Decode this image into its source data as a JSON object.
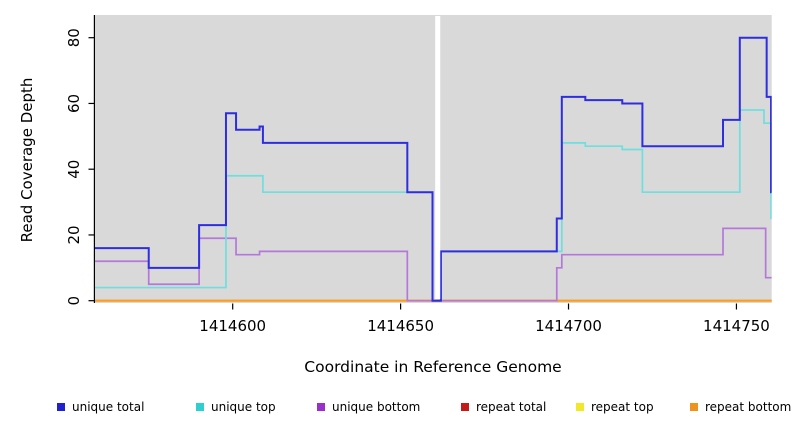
{
  "chart_data": {
    "type": "line",
    "subtype": "step-coverage-plot",
    "title": "",
    "xlabel": "Coordinate in Reference Genome",
    "ylabel": "Read Coverage Depth",
    "xlim": [
      1414559,
      1414760.5
    ],
    "ylim": [
      0,
      80
    ],
    "xticks": [
      1414600,
      1414650,
      1414700,
      1414750
    ],
    "xtick_labels": [
      "1414600",
      "1414650",
      "1414700",
      "1414750"
    ],
    "yticks": [
      0,
      20,
      40,
      60,
      80
    ],
    "ytick_labels": [
      "0",
      "20",
      "40",
      "60",
      "80"
    ],
    "plot_bg": "#d9d9d9",
    "axis_color": "#000000",
    "grid": "off",
    "legend_position": "bottom",
    "gap_stripe": {
      "x_start": 1414660.3,
      "x_end": 1414661.8,
      "color": "#ffffff"
    },
    "series": [
      {
        "name": "repeat total",
        "color": "#c41a1a",
        "width": 1.6,
        "points": [
          [
            1414559,
            0
          ],
          [
            1414760.5,
            0
          ]
        ]
      },
      {
        "name": "repeat top",
        "color": "#f0e829",
        "width": 1.6,
        "points": [
          [
            1414559,
            0
          ],
          [
            1414760.5,
            0
          ]
        ]
      },
      {
        "name": "repeat bottom",
        "color": "#ff9d1a",
        "width": 2,
        "points": [
          [
            1414559,
            0
          ],
          [
            1414760.5,
            0
          ]
        ]
      },
      {
        "name": "unique bottom",
        "color": "#b478da",
        "width": 1.7,
        "points": [
          [
            1414559,
            12
          ],
          [
            1414575,
            5
          ],
          [
            1414590,
            19
          ],
          [
            1414601,
            14
          ],
          [
            1414608,
            15
          ],
          [
            1414652,
            0
          ],
          [
            1414696.5,
            10
          ],
          [
            1414698,
            14
          ],
          [
            1414746,
            22
          ],
          [
            1414758.7,
            7
          ],
          [
            1414760.5,
            7
          ]
        ]
      },
      {
        "name": "unique top",
        "color": "#6fdede",
        "width": 1.7,
        "points": [
          [
            1414559,
            4
          ],
          [
            1414598,
            38
          ],
          [
            1414609,
            33
          ],
          [
            1414659.5,
            0
          ],
          [
            1414662,
            15
          ],
          [
            1414698,
            48
          ],
          [
            1414705,
            47
          ],
          [
            1414716,
            46
          ],
          [
            1414722,
            33
          ],
          [
            1414751,
            58
          ],
          [
            1414758.2,
            54
          ],
          [
            1414760.3,
            25
          ],
          [
            1414760.5,
            25
          ]
        ]
      },
      {
        "name": "unique total",
        "color": "#2e2ee0",
        "width": 2,
        "points": [
          [
            1414559,
            16
          ],
          [
            1414575,
            10
          ],
          [
            1414590,
            23
          ],
          [
            1414598,
            57
          ],
          [
            1414601,
            52
          ],
          [
            1414608,
            53
          ],
          [
            1414609,
            48
          ],
          [
            1414652,
            33
          ],
          [
            1414659.5,
            0
          ],
          [
            1414662,
            15
          ],
          [
            1414696.5,
            25
          ],
          [
            1414698,
            62
          ],
          [
            1414705,
            61
          ],
          [
            1414716,
            60
          ],
          [
            1414722,
            47
          ],
          [
            1414746,
            55
          ],
          [
            1414751,
            80
          ],
          [
            1414759,
            62
          ],
          [
            1414760.3,
            33
          ],
          [
            1414760.5,
            33
          ]
        ]
      }
    ]
  },
  "legend": {
    "items": [
      {
        "label": "unique total",
        "color": "#2121cd"
      },
      {
        "label": "unique top",
        "color": "#2ecfcf"
      },
      {
        "label": "unique bottom",
        "color": "#9a30cc"
      },
      {
        "label": "repeat total",
        "color": "#c41a1a"
      },
      {
        "label": "repeat top",
        "color": "#f0e829"
      },
      {
        "label": "repeat bottom",
        "color": "#f0931d"
      }
    ]
  },
  "labels": {
    "xlabel": "Coordinate in Reference Genome",
    "ylabel": "Read Coverage Depth"
  }
}
